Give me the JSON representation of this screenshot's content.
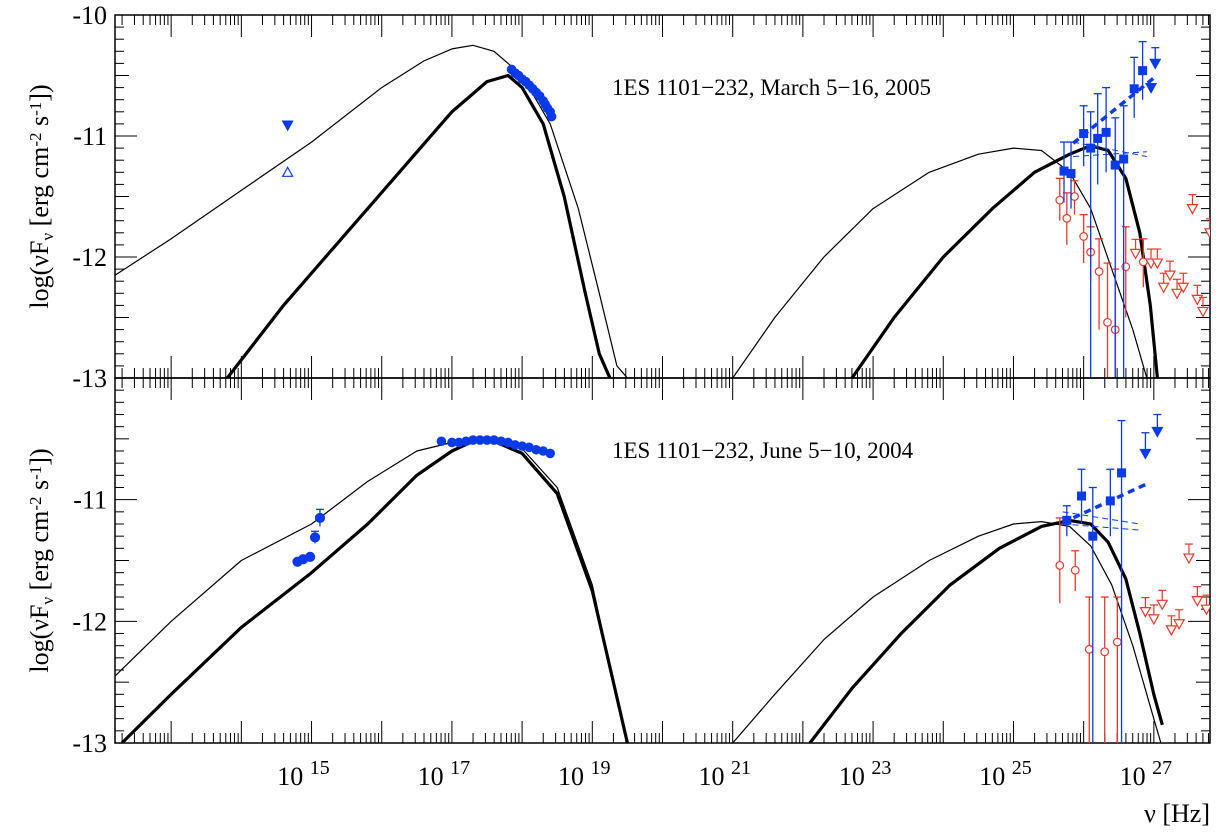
{
  "figure": {
    "xlabel": "ν [Hz]",
    "xtick_exponents": [
      15,
      17,
      19,
      21,
      23,
      25,
      27
    ],
    "xtick_base": "10",
    "xlim_log10": [
      12.2,
      27.8
    ],
    "colors": {
      "data_blue": "#0b3be8",
      "data_red": "#e8382a",
      "model": "#000000"
    }
  },
  "chart_data": [
    {
      "type": "line",
      "panel": "top",
      "annotation": "1ES 1101−232, March 5−16, 2005",
      "ylabel_main": "log(νF",
      "ylabel_sub": "ν",
      "ylabel_unit": " [erg cm",
      "ylabel_sup1": "-2",
      "ylabel_s": " s",
      "ylabel_sup2": "-1",
      "ylabel_close": "])",
      "ylim": [
        -13,
        -10
      ],
      "yticks": [
        "-13",
        "-12",
        "-11",
        "-10"
      ],
      "series": [
        {
          "style": "thin",
          "x": [
            12.2,
            13.0,
            14.0,
            15.0,
            16.0,
            16.6,
            17.0,
            17.3,
            17.6,
            18.0,
            18.4,
            18.8,
            19.1,
            19.35,
            19.5
          ],
          "y": [
            -12.15,
            -11.85,
            -11.45,
            -11.05,
            -10.6,
            -10.38,
            -10.28,
            -10.25,
            -10.3,
            -10.5,
            -10.9,
            -11.6,
            -12.3,
            -12.9,
            -13.0
          ]
        },
        {
          "style": "thick",
          "x": [
            13.8,
            14.6,
            15.5,
            16.4,
            17.0,
            17.5,
            17.8,
            18.0,
            18.3,
            18.6,
            18.9,
            19.1,
            19.25
          ],
          "y": [
            -13.0,
            -12.4,
            -11.8,
            -11.2,
            -10.8,
            -10.55,
            -10.5,
            -10.6,
            -10.9,
            -11.5,
            -12.3,
            -12.8,
            -13.0
          ]
        },
        {
          "style": "thin",
          "x": [
            21.0,
            21.6,
            22.3,
            23.0,
            23.8,
            24.5,
            25.0,
            25.4,
            25.8,
            26.1,
            26.4,
            26.7,
            26.9
          ],
          "y": [
            -13.0,
            -12.5,
            -12.0,
            -11.6,
            -11.3,
            -11.15,
            -11.1,
            -11.12,
            -11.3,
            -11.6,
            -12.1,
            -12.6,
            -13.0
          ]
        },
        {
          "style": "thick",
          "x": [
            22.7,
            23.3,
            24.0,
            24.7,
            25.3,
            25.8,
            26.1,
            26.35,
            26.6,
            26.8,
            26.95,
            27.05
          ],
          "y": [
            -13.0,
            -12.5,
            -12.0,
            -11.6,
            -11.3,
            -11.15,
            -11.08,
            -11.12,
            -11.35,
            -11.8,
            -12.4,
            -13.0
          ]
        }
      ],
      "points": [
        {
          "x": [
            17.85,
            17.9,
            17.95,
            18.0,
            18.05,
            18.1,
            18.15,
            18.2,
            18.25,
            18.3,
            18.33,
            18.36,
            18.4,
            18.42
          ],
          "y": [
            -10.45,
            -10.48,
            -10.5,
            -10.53,
            -10.55,
            -10.58,
            -10.61,
            -10.64,
            -10.67,
            -10.71,
            -10.74,
            -10.77,
            -10.8,
            -10.84
          ]
        }
      ],
      "markers_blue": [
        {
          "x": 14.66,
          "y": -10.91,
          "shape": "down-filled"
        },
        {
          "x": 14.66,
          "y": -11.3,
          "shape": "up-open"
        },
        {
          "x": 25.72,
          "y": -11.29,
          "shape": "square",
          "ylo": -11.55,
          "yhi": -11.05
        },
        {
          "x": 25.82,
          "y": -11.31,
          "shape": "square",
          "ylo": -11.6,
          "yhi": -11.05
        },
        {
          "x": 26.0,
          "y": -10.98,
          "shape": "square",
          "ylo": -11.25,
          "yhi": -10.75
        },
        {
          "x": 26.1,
          "y": -11.1,
          "shape": "square",
          "ylo": -13.0,
          "yhi": -10.8
        },
        {
          "x": 26.2,
          "y": -11.02,
          "shape": "square",
          "ylo": -11.4,
          "yhi": -10.65
        },
        {
          "x": 26.32,
          "y": -10.97,
          "shape": "square",
          "ylo": -11.3,
          "yhi": -10.6
        },
        {
          "x": 26.45,
          "y": -11.24,
          "shape": "square",
          "ylo": -13.0,
          "yhi": -10.85
        },
        {
          "x": 26.57,
          "y": -11.19,
          "shape": "square",
          "ylo": -13.0,
          "yhi": -10.75
        },
        {
          "x": 26.72,
          "y": -10.61,
          "shape": "square",
          "ylo": -10.85,
          "yhi": -10.35
        },
        {
          "x": 26.84,
          "y": -10.46,
          "shape": "square",
          "ylo": -10.7,
          "yhi": -10.22
        },
        {
          "x": 27.02,
          "y": -10.4,
          "shape": "down-filled",
          "ylo": -10.4,
          "yhi": -10.27
        },
        {
          "x": 26.96,
          "y": -10.6,
          "shape": "down-filled"
        }
      ],
      "dashed_fit": {
        "x": [
          25.85,
          27.0
        ],
        "y": [
          -11.06,
          -10.52
        ]
      },
      "dash_band": {
        "x": [
          25.85,
          26.9
        ],
        "y1": [
          -11.17,
          -11.13
        ],
        "y2": [
          -11.05,
          -11.17
        ]
      },
      "markers_red": [
        {
          "x": 25.66,
          "y": -11.53,
          "shape": "circle",
          "ylo": -11.7,
          "yhi": -11.35
        },
        {
          "x": 25.76,
          "y": -11.68,
          "shape": "circle",
          "ylo": -11.9,
          "yhi": -11.47
        },
        {
          "x": 25.87,
          "y": -11.5,
          "shape": "circle",
          "ylo": -11.65,
          "yhi": -11.37
        },
        {
          "x": 26.0,
          "y": -11.83,
          "shape": "circle",
          "ylo": -12.05,
          "yhi": -11.65
        },
        {
          "x": 26.1,
          "y": -11.96,
          "shape": "circle",
          "ylo": -12.2,
          "yhi": -11.75
        },
        {
          "x": 26.22,
          "y": -12.12,
          "shape": "circle",
          "ylo": -12.6,
          "yhi": -11.85
        },
        {
          "x": 26.34,
          "y": -12.54,
          "shape": "circle",
          "ylo": -13.0,
          "yhi": -12.05
        },
        {
          "x": 26.45,
          "y": -12.6,
          "shape": "circle",
          "ylo": -13.0,
          "yhi": -12.1
        },
        {
          "x": 26.6,
          "y": -12.08,
          "shape": "circle",
          "ylo": -12.5,
          "yhi": -11.75
        },
        {
          "x": 26.74,
          "y": -11.97,
          "shape": "down-open"
        },
        {
          "x": 26.85,
          "y": -12.04,
          "shape": "circle",
          "ylo": -12.25,
          "yhi": -11.85
        },
        {
          "x": 26.96,
          "y": -12.05,
          "shape": "down-open"
        },
        {
          "x": 27.05,
          "y": -12.05,
          "shape": "down-open"
        },
        {
          "x": 27.14,
          "y": -12.25,
          "shape": "down-open"
        },
        {
          "x": 27.23,
          "y": -12.15,
          "shape": "down-open"
        },
        {
          "x": 27.33,
          "y": -12.3,
          "shape": "down-open"
        },
        {
          "x": 27.42,
          "y": -12.25,
          "shape": "down-open"
        },
        {
          "x": 27.55,
          "y": -11.6,
          "shape": "down-open"
        },
        {
          "x": 27.62,
          "y": -12.35,
          "shape": "down-open"
        },
        {
          "x": 27.7,
          "y": -12.45,
          "shape": "down-open"
        },
        {
          "x": 27.8,
          "y": -11.8,
          "shape": "down-open"
        }
      ]
    },
    {
      "type": "line",
      "panel": "bottom",
      "annotation": "1ES 1101−232, June 5−10, 2004",
      "ylabel_main": "log(νF",
      "ylabel_sub": "ν",
      "ylabel_unit": " [erg cm",
      "ylabel_sup1": "-2",
      "ylabel_s": " s",
      "ylabel_sup2": "-1",
      "ylabel_close": "])",
      "ylim": [
        -13,
        -10
      ],
      "yticks": [
        "-13",
        "-12",
        "-11"
      ],
      "series": [
        {
          "style": "thin",
          "x": [
            12.2,
            13.0,
            14.0,
            15.0,
            15.8,
            16.5,
            17.0,
            17.3,
            17.6,
            18.0,
            18.5,
            19.0,
            19.3,
            19.5
          ],
          "y": [
            -12.45,
            -12.0,
            -11.5,
            -11.2,
            -10.85,
            -10.6,
            -10.53,
            -10.51,
            -10.52,
            -10.58,
            -10.9,
            -11.7,
            -12.5,
            -13.0
          ]
        },
        {
          "style": "thick",
          "x": [
            12.3,
            13.0,
            14.0,
            15.0,
            15.8,
            16.5,
            17.0,
            17.3,
            17.6,
            18.0,
            18.5,
            19.0,
            19.3,
            19.5
          ],
          "y": [
            -13.0,
            -12.6,
            -12.05,
            -11.6,
            -11.2,
            -10.8,
            -10.6,
            -10.52,
            -10.52,
            -10.62,
            -10.95,
            -11.75,
            -12.5,
            -13.0
          ]
        },
        {
          "style": "thin",
          "x": [
            21.0,
            21.6,
            22.3,
            23.0,
            23.8,
            24.5,
            25.0,
            25.4,
            25.8,
            26.1,
            26.4,
            26.7,
            27.0,
            27.1
          ],
          "y": [
            -13.0,
            -12.6,
            -12.15,
            -11.8,
            -11.5,
            -11.3,
            -11.2,
            -11.18,
            -11.22,
            -11.38,
            -11.7,
            -12.2,
            -12.8,
            -13.0
          ]
        },
        {
          "style": "thick",
          "x": [
            22.1,
            22.7,
            23.4,
            24.1,
            24.8,
            25.4,
            25.8,
            26.1,
            26.35,
            26.6,
            26.8,
            27.0,
            27.12
          ],
          "y": [
            -13.0,
            -12.55,
            -12.1,
            -11.7,
            -11.4,
            -11.22,
            -11.17,
            -11.2,
            -11.35,
            -11.65,
            -12.1,
            -12.6,
            -12.85
          ]
        }
      ],
      "points": [
        {
          "x": [
            16.85,
            17.0,
            17.1,
            17.2,
            17.3,
            17.4,
            17.5,
            17.6,
            17.7,
            17.8,
            17.9,
            18.0,
            18.1,
            18.2,
            18.3,
            18.4
          ],
          "y": [
            -10.52,
            -10.53,
            -10.53,
            -10.52,
            -10.51,
            -10.51,
            -10.51,
            -10.51,
            -10.52,
            -10.53,
            -10.55,
            -10.56,
            -10.57,
            -10.59,
            -10.6,
            -10.62
          ]
        }
      ],
      "markers_blue": [
        {
          "x": 14.8,
          "y": -11.51,
          "shape": "circle"
        },
        {
          "x": 14.88,
          "y": -11.49,
          "shape": "circle"
        },
        {
          "x": 14.98,
          "y": -11.47,
          "shape": "circle"
        },
        {
          "x": 15.05,
          "y": -11.31,
          "shape": "circle",
          "ylo": -11.36,
          "yhi": -11.26
        },
        {
          "x": 15.12,
          "y": -11.15,
          "shape": "circle",
          "ylo": -11.22,
          "yhi": -11.08
        },
        {
          "x": 25.76,
          "y": -11.17,
          "shape": "square",
          "ylo": -11.3,
          "yhi": -11.05
        },
        {
          "x": 25.97,
          "y": -10.97,
          "shape": "square",
          "ylo": -11.2,
          "yhi": -10.75
        },
        {
          "x": 26.13,
          "y": -11.3,
          "shape": "square",
          "ylo": -13.0,
          "yhi": -10.9
        },
        {
          "x": 26.38,
          "y": -11.01,
          "shape": "square",
          "ylo": -11.3,
          "yhi": -10.75
        },
        {
          "x": 26.54,
          "y": -10.78,
          "shape": "square",
          "ylo": -13.0,
          "yhi": -10.35
        },
        {
          "x": 26.88,
          "y": -10.62,
          "shape": "down-filled",
          "ylo": -10.62,
          "yhi": -10.45
        },
        {
          "x": 27.05,
          "y": -10.44,
          "shape": "down-filled",
          "ylo": -10.44,
          "yhi": -10.3
        }
      ],
      "dashed_fit": {
        "x": [
          25.7,
          26.9
        ],
        "y": [
          -11.19,
          -10.87
        ]
      },
      "dash_band": {
        "x": [
          25.7,
          26.8
        ],
        "y1": [
          -11.2,
          -11.25
        ],
        "y2": [
          -11.1,
          -11.2
        ]
      },
      "markers_red": [
        {
          "x": 25.66,
          "y": -11.54,
          "shape": "circle",
          "ylo": -11.85,
          "yhi": -11.15
        },
        {
          "x": 25.88,
          "y": -11.58,
          "shape": "circle",
          "ylo": -11.75,
          "yhi": -11.42
        },
        {
          "x": 26.08,
          "y": -12.23,
          "shape": "circle",
          "ylo": -13.0,
          "yhi": -11.8
        },
        {
          "x": 26.3,
          "y": -12.25,
          "shape": "circle",
          "ylo": -13.0,
          "yhi": -11.8
        },
        {
          "x": 26.48,
          "y": -12.17,
          "shape": "circle",
          "ylo": -13.0,
          "yhi": -11.8
        },
        {
          "x": 26.88,
          "y": -11.92,
          "shape": "down-open"
        },
        {
          "x": 27.0,
          "y": -11.98,
          "shape": "down-open"
        },
        {
          "x": 27.12,
          "y": -11.86,
          "shape": "down-open"
        },
        {
          "x": 27.25,
          "y": -12.07,
          "shape": "down-open"
        },
        {
          "x": 27.36,
          "y": -12.02,
          "shape": "down-open"
        },
        {
          "x": 27.5,
          "y": -11.48,
          "shape": "down-open"
        },
        {
          "x": 27.62,
          "y": -11.83,
          "shape": "down-open"
        },
        {
          "x": 27.75,
          "y": -11.9,
          "shape": "down-open"
        }
      ]
    }
  ]
}
